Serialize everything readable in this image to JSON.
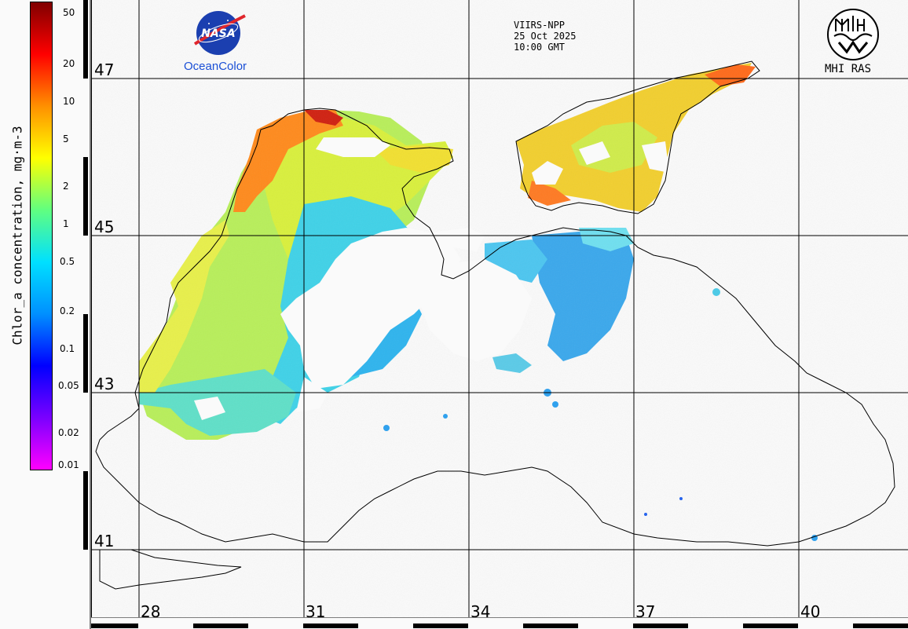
{
  "colorbar": {
    "title": "Chlor_a concentration, mg·m-3",
    "ticks": [
      "50",
      "20",
      "10",
      "5",
      "2",
      "1",
      "0.5",
      "0.2",
      "0.1",
      "0.05",
      "0.02",
      "0.01"
    ],
    "scale": "log",
    "range": [
      0.01,
      50
    ],
    "colors": [
      "#ff00ff",
      "#7a00ff",
      "#0000ff",
      "#0090ff",
      "#00e0ff",
      "#60ff80",
      "#ffff00",
      "#ff9000",
      "#ff0000",
      "#800000"
    ]
  },
  "header": {
    "satellite": "VIIRS-NPP",
    "date": "25 Oct 2025",
    "time": "10:00 GMT"
  },
  "logos": {
    "nasa_text": "NASA",
    "nasa_caption": "OceanColor",
    "mhi_caption": "MHI RAS"
  },
  "grid": {
    "lat_labels": [
      "47",
      "45",
      "43",
      "41"
    ],
    "lon_labels": [
      "28",
      "31",
      "34",
      "37",
      "40"
    ]
  },
  "map": {
    "region": "Black Sea",
    "land_color": "#fafafa",
    "coast_color": "#000000"
  }
}
